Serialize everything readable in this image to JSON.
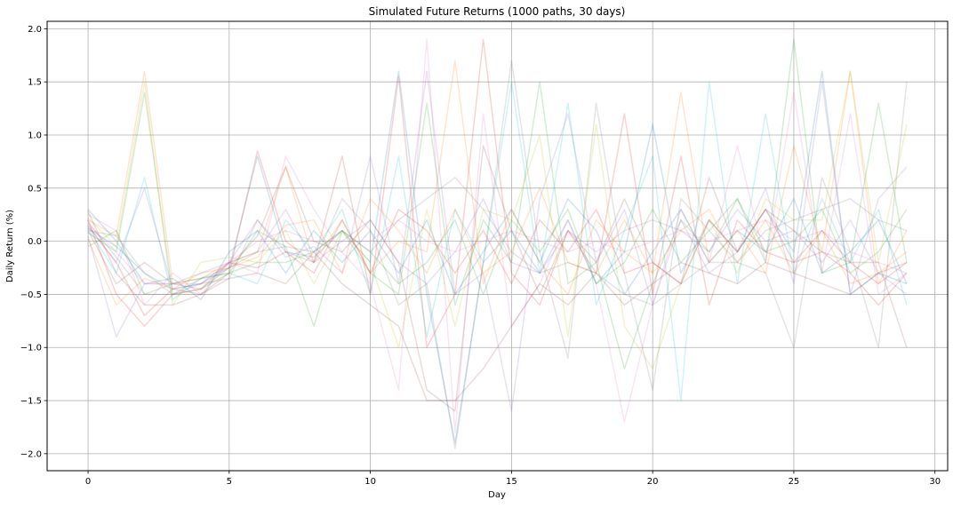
{
  "chart_data": {
    "type": "line",
    "title": "Simulated Future Returns (1000 paths, 30 days)",
    "xlabel": "Day",
    "ylabel": "Daily Return (%)",
    "xlim": [
      -1.45,
      30.45
    ],
    "ylim": [
      -2.16,
      2.07
    ],
    "xticks": [
      0,
      5,
      10,
      15,
      20,
      25,
      30
    ],
    "xtick_labels": [
      "0",
      "5",
      "10",
      "15",
      "20",
      "25",
      "30"
    ],
    "yticks": [
      2.0,
      1.5,
      1.0,
      0.5,
      0.0,
      -0.5,
      -1.0,
      -1.5,
      -2.0
    ],
    "ytick_labels": [
      "2.0",
      "1.5",
      "1.0",
      "0.5",
      "0.0",
      "−0.5",
      "−1.0",
      "−1.5",
      "−2.0"
    ],
    "grid": true,
    "line_alpha": 0.2,
    "colors": [
      "#1f77b4",
      "#ff7f0e",
      "#2ca02c",
      "#d62728",
      "#9467bd",
      "#8c564b",
      "#e377c2",
      "#7f7f7f",
      "#bcbd22",
      "#17becf"
    ],
    "x": [
      0,
      1,
      2,
      3,
      4,
      5,
      6,
      7,
      8,
      9,
      10,
      11,
      12,
      13,
      14,
      15,
      16,
      17,
      18,
      19,
      20,
      21,
      22,
      23,
      24,
      25,
      26,
      27,
      28,
      29
    ],
    "series": [
      {
        "values": [
          0.12,
          -0.05,
          -0.3,
          -0.45,
          -0.4,
          -0.25,
          0.8,
          -0.1,
          -0.15,
          0.1,
          -0.2,
          1.6,
          -0.5,
          -1.9,
          -0.2,
          0.1,
          -0.3,
          0.2,
          -0.4,
          -0.1,
          1.1,
          -0.3,
          0.2,
          -0.1,
          0.3,
          -0.1,
          1.6,
          -0.5,
          -0.3,
          -0.4
        ]
      },
      {
        "values": [
          0.2,
          0.05,
          1.6,
          -0.4,
          -0.35,
          -0.2,
          -0.1,
          0.7,
          -0.2,
          0.2,
          -0.3,
          0.0,
          -0.1,
          1.7,
          -0.4,
          0.3,
          -0.2,
          -0.5,
          0.2,
          -0.1,
          -0.3,
          1.4,
          -0.2,
          0.1,
          -0.3,
          0.9,
          -0.1,
          1.6,
          -0.4,
          0.1
        ]
      },
      {
        "values": [
          0.08,
          -0.1,
          1.4,
          -0.5,
          -0.45,
          -0.3,
          0.1,
          -0.05,
          -0.8,
          0.1,
          -0.3,
          -0.5,
          1.3,
          -0.6,
          0.2,
          -0.2,
          1.5,
          -0.4,
          -0.2,
          -1.2,
          -0.4,
          0.2,
          -0.1,
          0.4,
          -0.2,
          1.9,
          -0.3,
          -0.2,
          1.3,
          -0.2
        ]
      },
      {
        "values": [
          0.15,
          -0.2,
          -0.7,
          -0.45,
          -0.5,
          -0.3,
          0.85,
          0.0,
          -0.2,
          0.8,
          -0.5,
          1.55,
          -1.0,
          -0.5,
          1.9,
          -0.3,
          -0.6,
          0.1,
          -0.3,
          1.2,
          -0.5,
          0.8,
          -0.6,
          0.2,
          -0.1,
          -0.2,
          -0.1,
          -0.3,
          -0.6,
          -0.3
        ]
      },
      {
        "values": [
          0.05,
          -0.9,
          -0.4,
          -0.4,
          -0.3,
          -0.2,
          0.2,
          -0.15,
          -0.05,
          -0.3,
          0.8,
          -0.4,
          1.6,
          -0.5,
          -0.3,
          -1.6,
          0.4,
          1.2,
          -0.2,
          0.3,
          -0.6,
          0.2,
          -0.3,
          -0.1,
          0.5,
          -0.4,
          1.5,
          -0.5,
          0.4,
          0.7
        ]
      },
      {
        "values": [
          0.1,
          -0.4,
          -0.2,
          -0.4,
          -0.45,
          -0.25,
          0.05,
          0.7,
          0.0,
          -0.1,
          0.2,
          -0.2,
          -1.4,
          -1.6,
          0.9,
          0.1,
          -0.5,
          0.1,
          -0.2,
          0.4,
          -0.2,
          -0.4,
          0.6,
          -0.1,
          0.3,
          0.1,
          -0.1,
          -0.2,
          -0.2,
          -1.0
        ]
      },
      {
        "values": [
          0.25,
          0.1,
          -0.6,
          -0.3,
          -0.5,
          -0.2,
          -0.3,
          0.8,
          0.3,
          -0.1,
          -0.4,
          -1.4,
          1.9,
          -1.8,
          1.2,
          -0.8,
          -0.4,
          0.2,
          -0.4,
          -1.7,
          -0.6,
          0.3,
          -0.2,
          0.9,
          -0.2,
          1.4,
          -0.3,
          1.2,
          -0.5,
          -0.3
        ]
      },
      {
        "values": [
          0.18,
          -0.15,
          -0.5,
          -0.5,
          -0.4,
          -0.35,
          0.2,
          -0.1,
          -0.2,
          0.4,
          0.1,
          -0.6,
          -0.4,
          -1.95,
          -0.2,
          1.7,
          -0.1,
          -1.1,
          1.3,
          -0.3,
          -1.4,
          0.4,
          0.1,
          -0.2,
          -0.3,
          -1.0,
          0.6,
          -0.1,
          -1.0,
          1.5
        ]
      },
      {
        "values": [
          0.22,
          -0.05,
          1.5,
          -0.6,
          -0.2,
          -0.15,
          -0.2,
          0.1,
          -0.4,
          0.1,
          -0.2,
          -1.0,
          0.3,
          -0.8,
          0.3,
          0.2,
          1.0,
          -0.9,
          1.1,
          -0.8,
          -1.2,
          -0.4,
          0.2,
          -0.3,
          0.4,
          0.2,
          0.2,
          1.6,
          -0.2,
          1.1
        ]
      },
      {
        "values": [
          0.12,
          -0.3,
          0.6,
          -0.55,
          -0.35,
          -0.3,
          -0.4,
          0.2,
          -0.1,
          0.3,
          -0.5,
          0.8,
          -0.9,
          0.3,
          -0.2,
          1.5,
          -0.3,
          1.3,
          -0.6,
          0.1,
          0.8,
          -1.5,
          1.5,
          -0.4,
          1.2,
          -0.3,
          0.4,
          -0.2,
          0.3,
          -0.6
        ]
      },
      {
        "values": [
          0.3,
          0.0,
          -0.4,
          -0.35,
          -0.55,
          -0.1,
          0.1,
          -0.3,
          0.1,
          -0.2,
          0.1,
          -0.3,
          0.2,
          -0.5,
          -0.1,
          0.3,
          -0.2,
          0.4,
          0.1,
          -0.5,
          -0.1,
          0.3,
          -0.2,
          0.1,
          -0.1,
          0.4,
          -0.3,
          -0.1,
          0.2,
          -0.4
        ]
      },
      {
        "values": [
          0.02,
          -0.6,
          -0.35,
          -0.45,
          -0.3,
          -0.25,
          -0.15,
          0.15,
          0.2,
          -0.3,
          0.4,
          0.1,
          -0.3,
          0.3,
          -0.3,
          -0.1,
          0.5,
          -0.2,
          -0.3,
          0.2,
          -0.3,
          0.1,
          0.3,
          -0.2,
          0.2,
          -0.3,
          0.1,
          -0.4,
          -0.3,
          -0.1
        ]
      },
      {
        "values": [
          -0.05,
          0.1,
          -0.5,
          -0.4,
          -0.35,
          -0.3,
          -0.2,
          -0.2,
          -0.1,
          0.1,
          -0.1,
          -0.4,
          -0.2,
          0.2,
          -0.5,
          0.2,
          -0.1,
          0.3,
          -0.4,
          -0.2,
          0.3,
          -0.2,
          0.1,
          0.4,
          -0.1,
          0.0,
          0.3,
          -0.3,
          -0.1,
          0.3
        ]
      },
      {
        "values": [
          0.2,
          -0.5,
          -0.8,
          -0.5,
          -0.45,
          -0.2,
          -0.25,
          -0.1,
          -0.3,
          0.2,
          -0.3,
          0.3,
          0.1,
          -0.3,
          0.1,
          -0.4,
          0.2,
          -0.1,
          0.3,
          -0.3,
          -0.2,
          -0.4,
          0.2,
          -0.1,
          0.3,
          -0.2,
          0.1,
          -0.2,
          -0.4,
          -0.2
        ]
      },
      {
        "values": [
          0.14,
          -0.2,
          0.5,
          -0.45,
          -0.4,
          -0.2,
          -0.1,
          0.3,
          -0.2,
          0.0,
          0.2,
          -0.2,
          -0.4,
          -0.1,
          0.4,
          -0.2,
          -0.3,
          0.1,
          -0.1,
          0.1,
          0.2,
          0.1,
          -0.1,
          0.3,
          0.0,
          0.1,
          -0.2,
          0.2,
          -0.3,
          -0.5
        ]
      },
      {
        "values": [
          0.28,
          -0.3,
          -0.6,
          -0.6,
          -0.5,
          -0.35,
          -0.3,
          -0.4,
          -0.1,
          -0.4,
          -0.6,
          -0.8,
          -1.5,
          -1.5,
          -1.2,
          -0.8,
          -0.4,
          -0.6,
          -0.3,
          -0.6,
          -0.4,
          -0.2,
          -0.3,
          -0.4,
          -0.2,
          -0.3,
          -0.4,
          -0.5,
          -0.3,
          -0.2
        ]
      },
      {
        "values": [
          0.16,
          -0.1,
          -0.4,
          -0.4,
          -0.4,
          -0.2,
          0.0,
          0.1,
          0.0,
          0.0,
          0.0,
          0.2,
          0.0,
          -0.1,
          0.0,
          0.1,
          0.0,
          -0.1,
          0.0,
          -0.1,
          0.0,
          0.1,
          0.0,
          0.1,
          0.2,
          0.0,
          0.1,
          -0.1,
          -0.2,
          -0.3
        ]
      },
      {
        "values": [
          0.1,
          0.05,
          -0.3,
          -0.5,
          -0.35,
          -0.25,
          -0.1,
          -0.05,
          -0.1,
          0.1,
          -0.1,
          0.2,
          0.4,
          0.6,
          0.3,
          -0.1,
          -0.3,
          -0.2,
          -0.3,
          -0.5,
          -0.6,
          -0.4,
          -0.2,
          -0.2,
          0.1,
          0.2,
          0.3,
          0.4,
          0.2,
          0.1
        ]
      }
    ]
  }
}
